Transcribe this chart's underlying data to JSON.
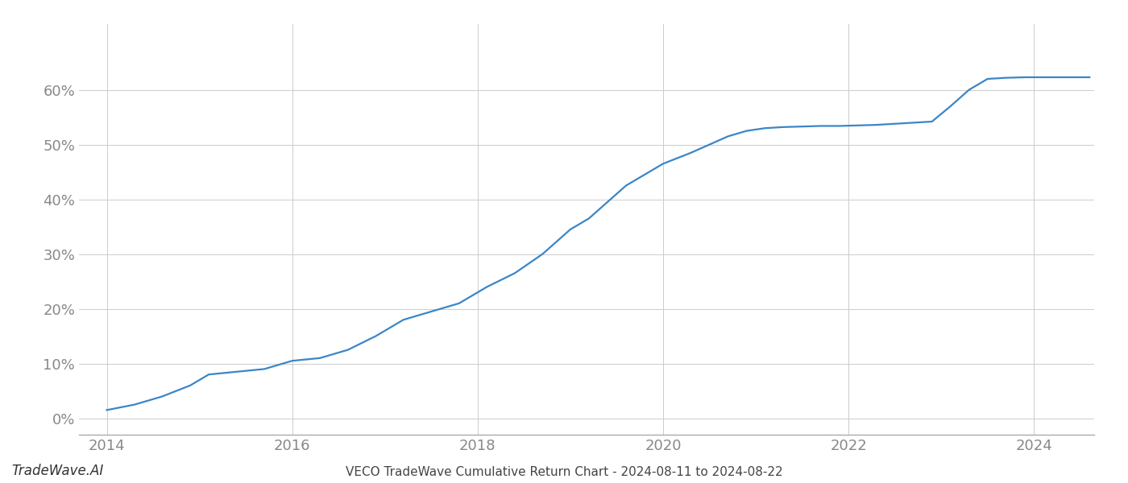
{
  "title": "VECO TradeWave Cumulative Return Chart - 2024-08-11 to 2024-08-22",
  "watermark": "TradeWave.AI",
  "line_color": "#3a86c8",
  "background_color": "#ffffff",
  "grid_color": "#cccccc",
  "x_values": [
    2014.0,
    2014.3,
    2014.6,
    2014.9,
    2015.1,
    2015.4,
    2015.7,
    2016.0,
    2016.3,
    2016.6,
    2016.9,
    2017.2,
    2017.5,
    2017.8,
    2018.1,
    2018.4,
    2018.7,
    2019.0,
    2019.2,
    2019.4,
    2019.6,
    2019.8,
    2020.0,
    2020.15,
    2020.3,
    2020.5,
    2020.7,
    2020.9,
    2021.1,
    2021.3,
    2021.5,
    2021.7,
    2021.9,
    2022.1,
    2022.3,
    2022.5,
    2022.7,
    2022.9,
    2023.1,
    2023.3,
    2023.5,
    2023.7,
    2023.9,
    2024.0,
    2024.3,
    2024.6
  ],
  "y_values": [
    1.5,
    2.5,
    4.0,
    6.0,
    8.0,
    8.5,
    9.0,
    10.5,
    11.0,
    12.5,
    15.0,
    18.0,
    19.5,
    21.0,
    24.0,
    26.5,
    30.0,
    34.5,
    36.5,
    39.5,
    42.5,
    44.5,
    46.5,
    47.5,
    48.5,
    50.0,
    51.5,
    52.5,
    53.0,
    53.2,
    53.3,
    53.4,
    53.4,
    53.5,
    53.6,
    53.8,
    54.0,
    54.2,
    57.0,
    60.0,
    62.0,
    62.2,
    62.3,
    62.3,
    62.3,
    62.3
  ],
  "xlim": [
    2013.7,
    2024.65
  ],
  "ylim": [
    -3,
    72
  ],
  "yticks": [
    0,
    10,
    20,
    30,
    40,
    50,
    60
  ],
  "xticks": [
    2014,
    2016,
    2018,
    2020,
    2022,
    2024
  ],
  "line_width": 1.6,
  "title_fontsize": 11,
  "tick_fontsize": 13,
  "watermark_fontsize": 12,
  "tick_label_color": "#888888"
}
